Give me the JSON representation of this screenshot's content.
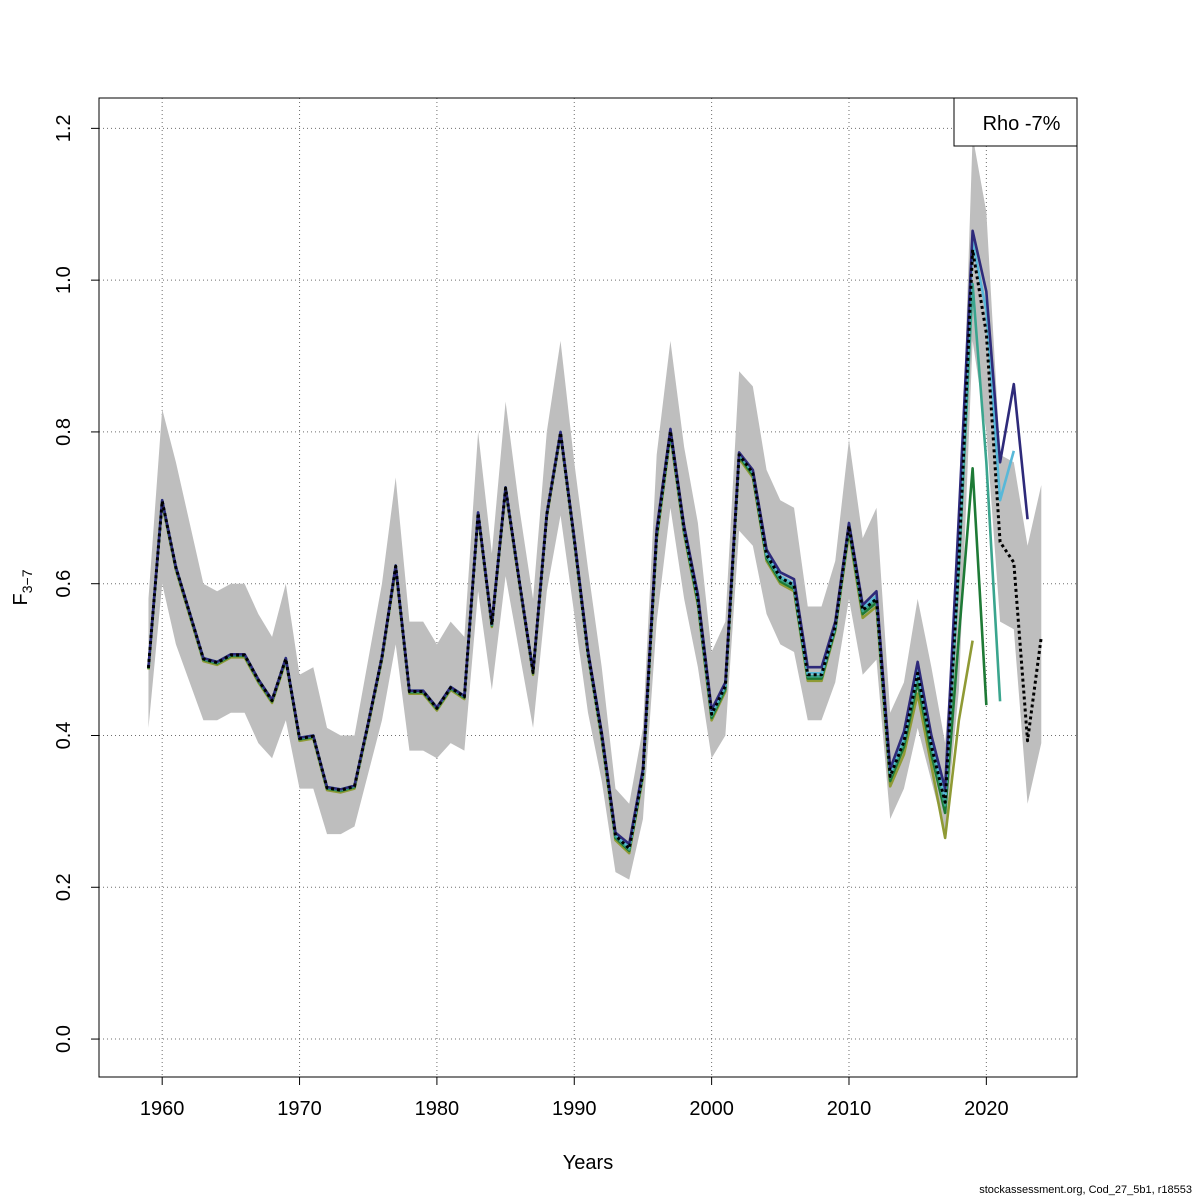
{
  "footer_text": "stockassessment.org, Cod_27_5b1, r18553",
  "chart_data": {
    "type": "line",
    "title": "",
    "xlabel": "Years",
    "ylabel_main": "F",
    "ylabel_sub": "3−7",
    "xlim": [
      1955.4,
      2026.6
    ],
    "ylim": [
      -0.05,
      1.24
    ],
    "x_ticks": [
      1960,
      1970,
      1980,
      1990,
      2000,
      2010,
      2020
    ],
    "x_tick_labels": [
      "1960",
      "1970",
      "1980",
      "1990",
      "2000",
      "2010",
      "2020"
    ],
    "y_ticks": [
      0.0,
      0.2,
      0.4,
      0.6,
      0.8,
      1.0,
      1.2
    ],
    "y_tick_labels": [
      "0.0",
      "0.2",
      "0.4",
      "0.6",
      "0.8",
      "1.0",
      "1.2"
    ],
    "grid": true,
    "legend": {
      "position": "top-right",
      "text": "Rho -7%"
    },
    "colors": {
      "band": "#bebebe",
      "base": "#000000",
      "peel1": "#2e2a7a",
      "peel2": "#58b8d8",
      "peel3": "#3aa58e",
      "peel4": "#1e7a36",
      "peel5": "#8f9a35"
    },
    "band": {
      "x": [
        1959,
        1960,
        1961,
        1962,
        1963,
        1964,
        1965,
        1966,
        1967,
        1968,
        1969,
        1970,
        1971,
        1972,
        1973,
        1974,
        1975,
        1976,
        1977,
        1978,
        1979,
        1980,
        1981,
        1982,
        1983,
        1984,
        1985,
        1986,
        1987,
        1988,
        1989,
        1990,
        1991,
        1992,
        1993,
        1994,
        1995,
        1996,
        1997,
        1998,
        1999,
        2000,
        2001,
        2002,
        2003,
        2004,
        2005,
        2006,
        2007,
        2008,
        2009,
        2010,
        2011,
        2012,
        2013,
        2014,
        2015,
        2016,
        2017,
        2018,
        2019,
        2020,
        2021,
        2022,
        2023,
        2024
      ],
      "upper": [
        0.58,
        0.83,
        0.76,
        0.68,
        0.6,
        0.59,
        0.6,
        0.6,
        0.56,
        0.53,
        0.6,
        0.48,
        0.49,
        0.41,
        0.4,
        0.4,
        0.5,
        0.6,
        0.74,
        0.55,
        0.55,
        0.52,
        0.55,
        0.53,
        0.8,
        0.64,
        0.84,
        0.7,
        0.58,
        0.8,
        0.92,
        0.76,
        0.62,
        0.49,
        0.33,
        0.31,
        0.41,
        0.77,
        0.92,
        0.78,
        0.68,
        0.51,
        0.55,
        0.88,
        0.86,
        0.75,
        0.71,
        0.7,
        0.57,
        0.57,
        0.63,
        0.79,
        0.66,
        0.7,
        0.43,
        0.47,
        0.58,
        0.49,
        0.39,
        0.64,
        1.19,
        1.09,
        0.77,
        0.76,
        0.65,
        0.73
      ],
      "lower": [
        0.41,
        0.6,
        0.52,
        0.47,
        0.42,
        0.42,
        0.43,
        0.43,
        0.39,
        0.37,
        0.42,
        0.33,
        0.33,
        0.27,
        0.27,
        0.28,
        0.35,
        0.42,
        0.52,
        0.38,
        0.38,
        0.37,
        0.39,
        0.38,
        0.59,
        0.46,
        0.61,
        0.51,
        0.41,
        0.59,
        0.69,
        0.56,
        0.43,
        0.34,
        0.22,
        0.21,
        0.29,
        0.55,
        0.7,
        0.58,
        0.49,
        0.37,
        0.4,
        0.67,
        0.65,
        0.56,
        0.52,
        0.51,
        0.42,
        0.42,
        0.47,
        0.58,
        0.48,
        0.5,
        0.29,
        0.33,
        0.41,
        0.34,
        0.27,
        0.46,
        0.92,
        0.8,
        0.55,
        0.54,
        0.31,
        0.39
      ]
    },
    "series": [
      {
        "color_key": "peel5",
        "x": [
          1959,
          1960,
          1961,
          1962,
          1963,
          1964,
          1965,
          1966,
          1967,
          1968,
          1969,
          1970,
          1971,
          1972,
          1973,
          1974,
          1975,
          1976,
          1977,
          1978,
          1979,
          1980,
          1981,
          1982,
          1983,
          1984,
          1985,
          1986,
          1987,
          1988,
          1989,
          1990,
          1991,
          1992,
          1993,
          1994,
          1995,
          1996,
          1997,
          1998,
          1999,
          2000,
          2001,
          2002,
          2003,
          2004,
          2005,
          2006,
          2007,
          2008,
          2009,
          2010,
          2011,
          2012,
          2013,
          2014,
          2015,
          2016,
          2017,
          2018,
          2019
        ],
        "values": [
          0.487,
          0.706,
          0.618,
          0.558,
          0.498,
          0.493,
          0.503,
          0.503,
          0.47,
          0.443,
          0.498,
          0.393,
          0.396,
          0.328,
          0.325,
          0.33,
          0.413,
          0.5,
          0.62,
          0.455,
          0.455,
          0.433,
          0.46,
          0.448,
          0.69,
          0.543,
          0.723,
          0.6,
          0.48,
          0.688,
          0.797,
          0.655,
          0.505,
          0.395,
          0.262,
          0.245,
          0.345,
          0.658,
          0.795,
          0.665,
          0.572,
          0.42,
          0.458,
          0.765,
          0.74,
          0.63,
          0.6,
          0.59,
          0.472,
          0.472,
          0.538,
          0.668,
          0.555,
          0.57,
          0.333,
          0.375,
          0.455,
          0.36,
          0.265,
          0.42,
          0.525
        ]
      },
      {
        "color_key": "peel4",
        "x": [
          1959,
          1960,
          1961,
          1962,
          1963,
          1964,
          1965,
          1966,
          1967,
          1968,
          1969,
          1970,
          1971,
          1972,
          1973,
          1974,
          1975,
          1976,
          1977,
          1978,
          1979,
          1980,
          1981,
          1982,
          1983,
          1984,
          1985,
          1986,
          1987,
          1988,
          1989,
          1990,
          1991,
          1992,
          1993,
          1994,
          1995,
          1996,
          1997,
          1998,
          1999,
          2000,
          2001,
          2002,
          2003,
          2004,
          2005,
          2006,
          2007,
          2008,
          2009,
          2010,
          2011,
          2012,
          2013,
          2014,
          2015,
          2016,
          2017,
          2018,
          2019,
          2020
        ],
        "values": [
          0.488,
          0.708,
          0.62,
          0.56,
          0.5,
          0.495,
          0.505,
          0.505,
          0.472,
          0.445,
          0.5,
          0.395,
          0.398,
          0.33,
          0.327,
          0.332,
          0.415,
          0.502,
          0.622,
          0.457,
          0.457,
          0.435,
          0.462,
          0.45,
          0.692,
          0.545,
          0.725,
          0.602,
          0.482,
          0.69,
          0.798,
          0.657,
          0.507,
          0.398,
          0.265,
          0.248,
          0.348,
          0.662,
          0.798,
          0.668,
          0.575,
          0.423,
          0.461,
          0.768,
          0.743,
          0.633,
          0.603,
          0.593,
          0.475,
          0.475,
          0.54,
          0.672,
          0.56,
          0.575,
          0.34,
          0.385,
          0.47,
          0.375,
          0.298,
          0.53,
          0.752,
          0.44
        ]
      },
      {
        "color_key": "peel3",
        "x": [
          1959,
          1960,
          1961,
          1962,
          1963,
          1964,
          1965,
          1966,
          1967,
          1968,
          1969,
          1970,
          1971,
          1972,
          1973,
          1974,
          1975,
          1976,
          1977,
          1978,
          1979,
          1980,
          1981,
          1982,
          1983,
          1984,
          1985,
          1986,
          1987,
          1988,
          1989,
          1990,
          1991,
          1992,
          1993,
          1994,
          1995,
          1996,
          1997,
          1998,
          1999,
          2000,
          2001,
          2002,
          2003,
          2004,
          2005,
          2006,
          2007,
          2008,
          2009,
          2010,
          2011,
          2012,
          2013,
          2014,
          2015,
          2016,
          2017,
          2018,
          2019,
          2020,
          2021
        ],
        "values": [
          0.489,
          0.709,
          0.621,
          0.561,
          0.501,
          0.496,
          0.506,
          0.506,
          0.473,
          0.446,
          0.501,
          0.396,
          0.399,
          0.331,
          0.328,
          0.333,
          0.416,
          0.503,
          0.623,
          0.458,
          0.458,
          0.436,
          0.463,
          0.451,
          0.693,
          0.546,
          0.726,
          0.603,
          0.483,
          0.691,
          0.799,
          0.658,
          0.508,
          0.4,
          0.267,
          0.25,
          0.35,
          0.665,
          0.8,
          0.67,
          0.578,
          0.426,
          0.464,
          0.77,
          0.746,
          0.636,
          0.606,
          0.596,
          0.478,
          0.478,
          0.543,
          0.676,
          0.564,
          0.58,
          0.345,
          0.392,
          0.48,
          0.385,
          0.308,
          0.62,
          0.995,
          0.76,
          0.445
        ]
      },
      {
        "color_key": "peel2",
        "x": [
          1959,
          1960,
          1961,
          1962,
          1963,
          1964,
          1965,
          1966,
          1967,
          1968,
          1969,
          1970,
          1971,
          1972,
          1973,
          1974,
          1975,
          1976,
          1977,
          1978,
          1979,
          1980,
          1981,
          1982,
          1983,
          1984,
          1985,
          1986,
          1987,
          1988,
          1989,
          1990,
          1991,
          1992,
          1993,
          1994,
          1995,
          1996,
          1997,
          1998,
          1999,
          2000,
          2001,
          2002,
          2003,
          2004,
          2005,
          2006,
          2007,
          2008,
          2009,
          2010,
          2011,
          2012,
          2013,
          2014,
          2015,
          2016,
          2017,
          2018,
          2019,
          2020,
          2021,
          2022
        ],
        "values": [
          0.49,
          0.71,
          0.622,
          0.562,
          0.502,
          0.497,
          0.507,
          0.507,
          0.474,
          0.447,
          0.502,
          0.397,
          0.4,
          0.332,
          0.329,
          0.334,
          0.417,
          0.504,
          0.624,
          0.459,
          0.459,
          0.437,
          0.464,
          0.452,
          0.694,
          0.547,
          0.727,
          0.604,
          0.484,
          0.692,
          0.8,
          0.66,
          0.51,
          0.402,
          0.27,
          0.253,
          0.353,
          0.668,
          0.803,
          0.673,
          0.582,
          0.43,
          0.467,
          0.772,
          0.748,
          0.64,
          0.61,
          0.6,
          0.482,
          0.482,
          0.546,
          0.68,
          0.568,
          0.584,
          0.35,
          0.398,
          0.488,
          0.392,
          0.318,
          0.66,
          1.05,
          0.96,
          0.71,
          0.775
        ]
      },
      {
        "color_key": "peel1",
        "x": [
          1959,
          1960,
          1961,
          1962,
          1963,
          1964,
          1965,
          1966,
          1967,
          1968,
          1969,
          1970,
          1971,
          1972,
          1973,
          1974,
          1975,
          1976,
          1977,
          1978,
          1979,
          1980,
          1981,
          1982,
          1983,
          1984,
          1985,
          1986,
          1987,
          1988,
          1989,
          1990,
          1991,
          1992,
          1993,
          1994,
          1995,
          1996,
          1997,
          1998,
          1999,
          2000,
          2001,
          2002,
          2003,
          2004,
          2005,
          2006,
          2007,
          2008,
          2009,
          2010,
          2011,
          2012,
          2013,
          2014,
          2015,
          2016,
          2017,
          2018,
          2019,
          2020,
          2021,
          2022,
          2023
        ],
        "values": [
          0.49,
          0.71,
          0.622,
          0.562,
          0.502,
          0.497,
          0.507,
          0.507,
          0.474,
          0.447,
          0.502,
          0.397,
          0.4,
          0.332,
          0.329,
          0.334,
          0.417,
          0.504,
          0.624,
          0.459,
          0.459,
          0.437,
          0.464,
          0.452,
          0.694,
          0.547,
          0.727,
          0.604,
          0.484,
          0.692,
          0.8,
          0.661,
          0.512,
          0.404,
          0.272,
          0.257,
          0.356,
          0.672,
          0.804,
          0.676,
          0.586,
          0.434,
          0.47,
          0.773,
          0.75,
          0.645,
          0.615,
          0.606,
          0.49,
          0.49,
          0.55,
          0.68,
          0.572,
          0.59,
          0.356,
          0.405,
          0.497,
          0.4,
          0.33,
          0.69,
          1.065,
          0.985,
          0.76,
          0.863,
          0.685
        ]
      },
      {
        "color_key": "base",
        "dashed": true,
        "x": [
          1959,
          1960,
          1961,
          1962,
          1963,
          1964,
          1965,
          1966,
          1967,
          1968,
          1969,
          1970,
          1971,
          1972,
          1973,
          1974,
          1975,
          1976,
          1977,
          1978,
          1979,
          1980,
          1981,
          1982,
          1983,
          1984,
          1985,
          1986,
          1987,
          1988,
          1989,
          1990,
          1991,
          1992,
          1993,
          1994,
          1995,
          1996,
          1997,
          1998,
          1999,
          2000,
          2001,
          2002,
          2003,
          2004,
          2005,
          2006,
          2007,
          2008,
          2009,
          2010,
          2011,
          2012,
          2013,
          2014,
          2015,
          2016,
          2017,
          2018,
          2019,
          2020,
          2021,
          2022,
          2023,
          2024
        ],
        "values": [
          0.489,
          0.709,
          0.621,
          0.561,
          0.501,
          0.496,
          0.506,
          0.506,
          0.473,
          0.446,
          0.501,
          0.396,
          0.399,
          0.331,
          0.328,
          0.333,
          0.416,
          0.503,
          0.623,
          0.458,
          0.458,
          0.436,
          0.463,
          0.451,
          0.693,
          0.546,
          0.726,
          0.603,
          0.483,
          0.691,
          0.799,
          0.658,
          0.508,
          0.4,
          0.268,
          0.251,
          0.351,
          0.665,
          0.801,
          0.671,
          0.58,
          0.428,
          0.465,
          0.77,
          0.746,
          0.638,
          0.608,
          0.598,
          0.48,
          0.48,
          0.544,
          0.676,
          0.565,
          0.58,
          0.346,
          0.392,
          0.482,
          0.386,
          0.312,
          0.63,
          1.04,
          0.93,
          0.655,
          0.628,
          0.393,
          0.53
        ]
      }
    ]
  }
}
